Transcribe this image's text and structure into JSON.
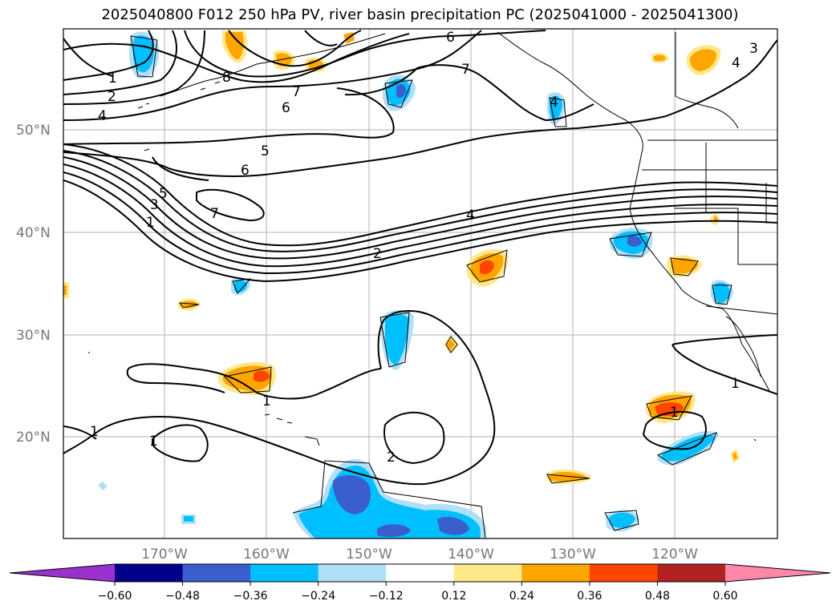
{
  "title": "2025040800 F012 250 hPa PV, river basin precipitation PC (2025041000 - 2025041300)",
  "lat_labels": [
    "50°N",
    "40°N",
    "30°N",
    "20°N"
  ],
  "lon_labels": [
    "170°W",
    "160°W",
    "150°W",
    "140°W",
    "130°W",
    "120°W"
  ],
  "colorbar": {
    "ticks": [
      "−0.60",
      "−0.48",
      "−0.36",
      "−0.24",
      "−0.12",
      "0.12",
      "0.24",
      "0.36",
      "0.48",
      "0.60"
    ],
    "colors": [
      "#9932cc",
      "#00008b",
      "#3a5fcd",
      "#00bfff",
      "#b0e0f8",
      "#ffffff",
      "#ffe88a",
      "#ffa500",
      "#ff4500",
      "#b22222",
      "#ff88aa"
    ]
  },
  "contour_labels": [
    "6",
    "7",
    "7",
    "6",
    "8",
    "1",
    "2",
    "4",
    "5",
    "6",
    "5",
    "3",
    "7",
    "1",
    "4",
    "2",
    "1",
    "1",
    "2",
    "1",
    "1",
    "1",
    "4",
    "3",
    "4"
  ]
}
